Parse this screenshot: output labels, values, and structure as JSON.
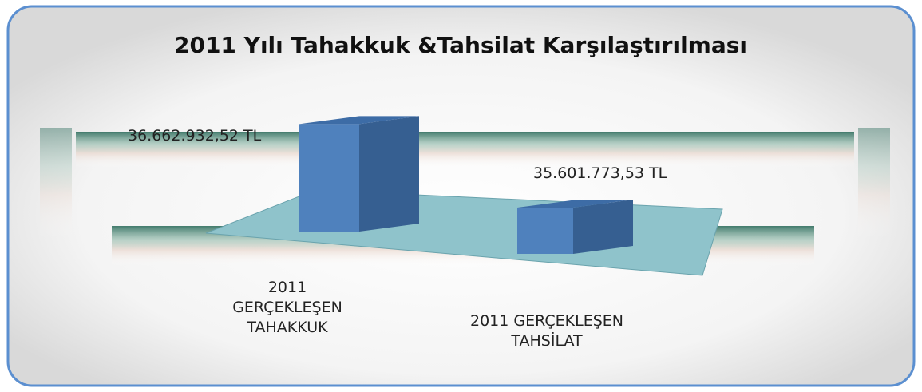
{
  "chart_data": {
    "type": "bar3d",
    "title": "2011 Yılı Tahakkuk &Tahsilat Karşılaştırılması",
    "categories": [
      "2011 GERÇEKLEŞEN TAHAKKUK",
      "2011 GERÇEKLEŞEN TAHSİLAT"
    ],
    "values": [
      36662932.52,
      35601773.53
    ],
    "value_labels": [
      "36.662.932,52  TL",
      "35.601.773,53 TL"
    ],
    "color": "#4f81bd",
    "ylim": [
      34800000,
      37000000
    ]
  }
}
